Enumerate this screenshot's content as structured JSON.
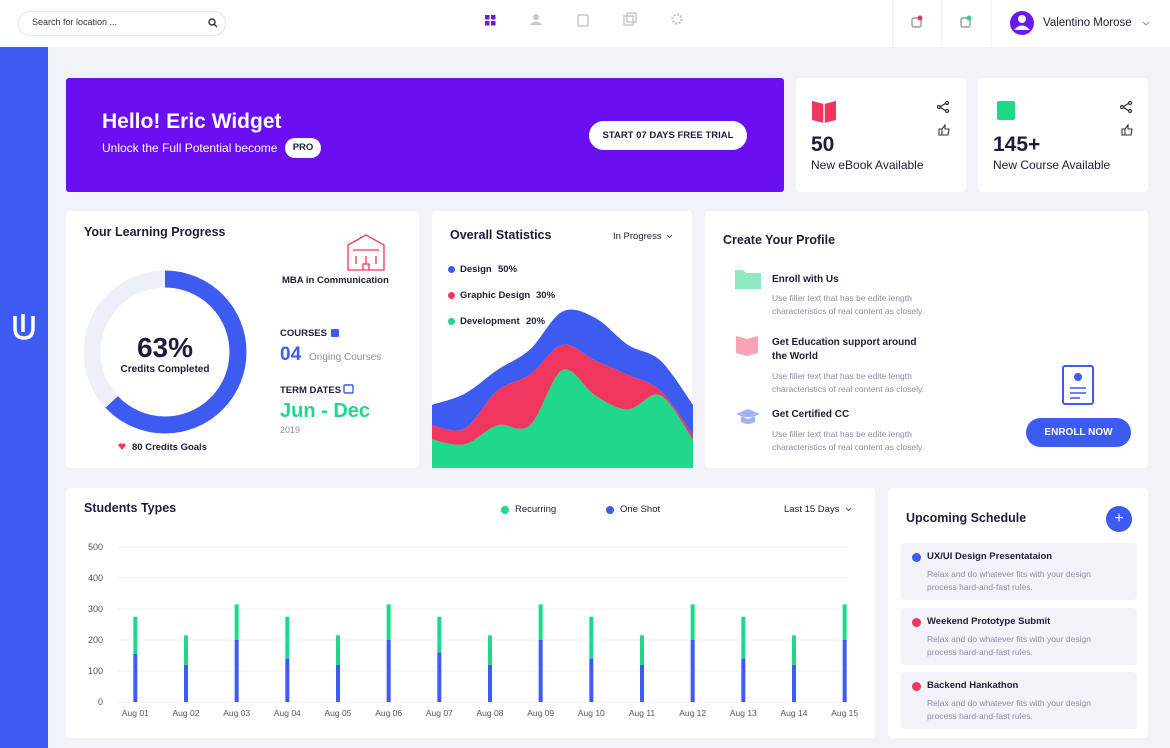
{
  "header": {
    "search_placeholder": "Search for location ...",
    "user_name": "Valentino Morose"
  },
  "banner": {
    "title": "Hello! Eric Widget",
    "subtitle": "Unlock the Full Potential become",
    "badge": "PRO",
    "button": "START 07 DAYS FREE TRIAL"
  },
  "stat_cards": [
    {
      "value": 50,
      "label": "New eBook Available"
    },
    {
      "value": "145+",
      "label": "New Course Available"
    }
  ],
  "learning_progress": {
    "title": "Your Learning Progress",
    "progress": 63,
    "progress_label": "63%",
    "progress_caption": "Credits Completed",
    "goal": "80 Credits Goals",
    "program": "MBA in Communication",
    "courses_label": "COURSES",
    "courses_count": "04",
    "courses_note": "Onging Courses",
    "term_label": "TERM DATES",
    "term": "Jun - Dec",
    "year": "2019"
  },
  "create_profile": {
    "title": "Create Your Profile",
    "items": [
      {
        "title": "Enroll with Us",
        "description": "Use filler text that has be edite length characteristics of real content as closely."
      },
      {
        "title": "Get Education support around the World",
        "description": "Use filler text that has be edite length characteristics of real content as closely."
      },
      {
        "title": "Get Certified CC",
        "description": "Use filler text that has be edite length characteristics of real content as closely."
      }
    ],
    "button": "ENROLL NOW"
  },
  "upcoming_schedule": {
    "title": "Upcoming Schedule",
    "items": [
      {
        "title": "UX/UI Design Presentataion",
        "description": "Relax and do whatever fits with your design process hard-and-fast rules.",
        "color": "#3d5af1"
      },
      {
        "title": "Weekend Prototype Submit",
        "description": "Relax and do whatever fits with your design process hard-and-fast rules.",
        "color": "#f0365e"
      },
      {
        "title": "Backend Hankathon",
        "description": "Relax and do whatever fits with your design process hard-and-fast rules.",
        "color": "#f0365e"
      }
    ]
  },
  "chart_data": [
    {
      "type": "area",
      "title": "Overall Statistics",
      "filter": "In Progress",
      "stacked": true,
      "ylim": [
        0,
        100
      ],
      "series": [
        {
          "name": "Design",
          "label": "50%",
          "color": "#3d5af1",
          "values": [
            13,
            22,
            13,
            16,
            21,
            27,
            19,
            19,
            19
          ]
        },
        {
          "name": "Graphic Design",
          "label": "30%",
          "color": "#f0365e",
          "values": [
            9,
            10,
            22,
            32,
            16,
            22,
            22,
            3,
            3
          ]
        },
        {
          "name": "Development",
          "label": "20%",
          "color": "#1fd88a",
          "values": [
            18,
            15,
            27,
            27,
            62,
            46,
            37,
            46,
            18
          ]
        }
      ]
    },
    {
      "type": "bar",
      "title": "Students Types",
      "filter": "Last 15 Days",
      "stacked": true,
      "grid": true,
      "categories": [
        "Aug 01",
        "Aug 02",
        "Aug 03",
        "Aug 04",
        "Aug 05",
        "Aug 06",
        "Aug 07",
        "Aug 08",
        "Aug 09",
        "Aug 10",
        "Aug 11",
        "Aug 12",
        "Aug 13",
        "Aug 14",
        "Aug 15"
      ],
      "ylim": [
        0,
        500
      ],
      "yticks": [
        0,
        100,
        200,
        300,
        400,
        500
      ],
      "series": [
        {
          "name": "Recurring",
          "color": "#1fd88a",
          "values": [
            120,
            95,
            115,
            135,
            95,
            115,
            115,
            95,
            115,
            135,
            95,
            115,
            135,
            95,
            115
          ]
        },
        {
          "name": "One Shot",
          "color": "#3d5af1",
          "values": [
            155,
            120,
            200,
            140,
            120,
            200,
            160,
            120,
            200,
            140,
            120,
            200,
            140,
            120,
            200
          ]
        }
      ]
    }
  ]
}
